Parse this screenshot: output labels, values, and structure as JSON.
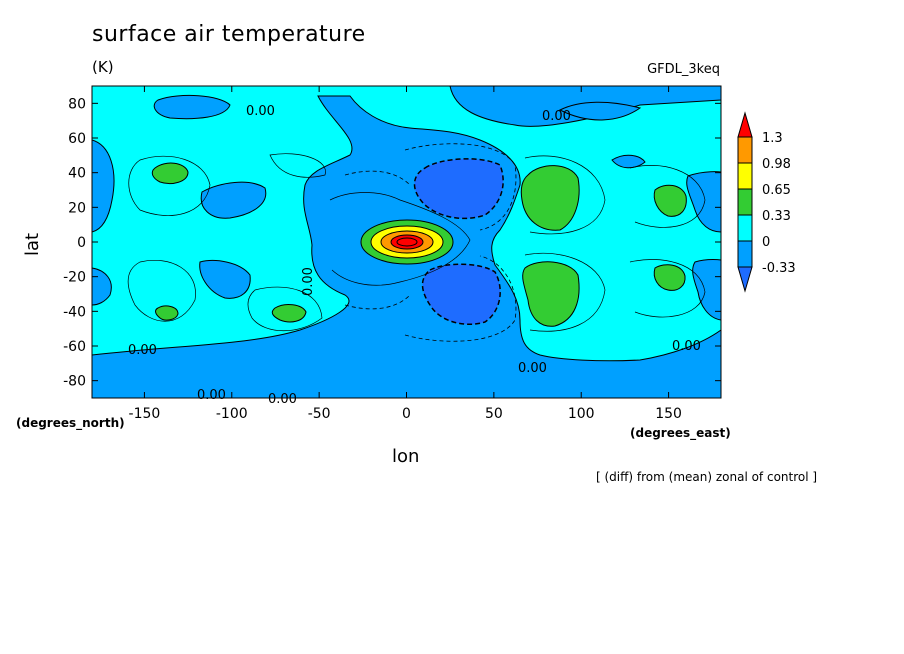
{
  "title": "surface air temperature",
  "units": "(K)",
  "model": "GFDL_3keq",
  "footnote": "[ (diff) from (mean) zonal of control ]",
  "colors": {
    "lt_neg033": "#1e90ff",
    "neg033_0": "#00ccff",
    "c0_033": "#00ffff",
    "c033_065": "#33cc33",
    "c065_098": "#ffff00",
    "c098_13": "#ff9900",
    "gt_13": "#ff0000"
  },
  "chart_data": {
    "type": "heatmap",
    "title": "surface air temperature",
    "units": "(K)",
    "xlabel": "lon",
    "ylabel": "lat",
    "x_units_label": "(degrees_east)",
    "y_units_label": "(degrees_north)",
    "xlim": [
      -180,
      180
    ],
    "ylim": [
      -90,
      90
    ],
    "x_ticks": [
      -150,
      -100,
      -50,
      0,
      50,
      100,
      150
    ],
    "y_ticks": [
      80,
      60,
      40,
      20,
      0,
      -20,
      -40,
      -60,
      -80
    ],
    "colorbar_levels": [
      "1.3",
      "0.98",
      "0.65",
      "0.33",
      "0",
      "-0.33"
    ],
    "contour_labels": [
      "0.00",
      "0.00",
      "0.00",
      "0.00",
      "0.00",
      "0.00",
      "0.00",
      "0.00"
    ],
    "features": [
      {
        "lon": 0,
        "lat": 0,
        "value": 1.3,
        "desc": "warm maximum"
      },
      {
        "lon": 35,
        "lat": 35,
        "value": -0.45
      },
      {
        "lon": 35,
        "lat": -30,
        "value": -0.45
      },
      {
        "lon": 82,
        "lat": 25,
        "value": 0.45
      },
      {
        "lon": 82,
        "lat": -27,
        "value": 0.45
      },
      {
        "lon": -135,
        "lat": 40,
        "value": 0.4
      },
      {
        "lon": 150,
        "lat": 25,
        "value": 0.4
      },
      {
        "lon": 150,
        "lat": -20,
        "value": 0.4
      },
      {
        "lon": -135,
        "lat": -40,
        "value": 0.4
      },
      {
        "lon": -65,
        "lat": -40,
        "value": 0.4
      }
    ]
  }
}
